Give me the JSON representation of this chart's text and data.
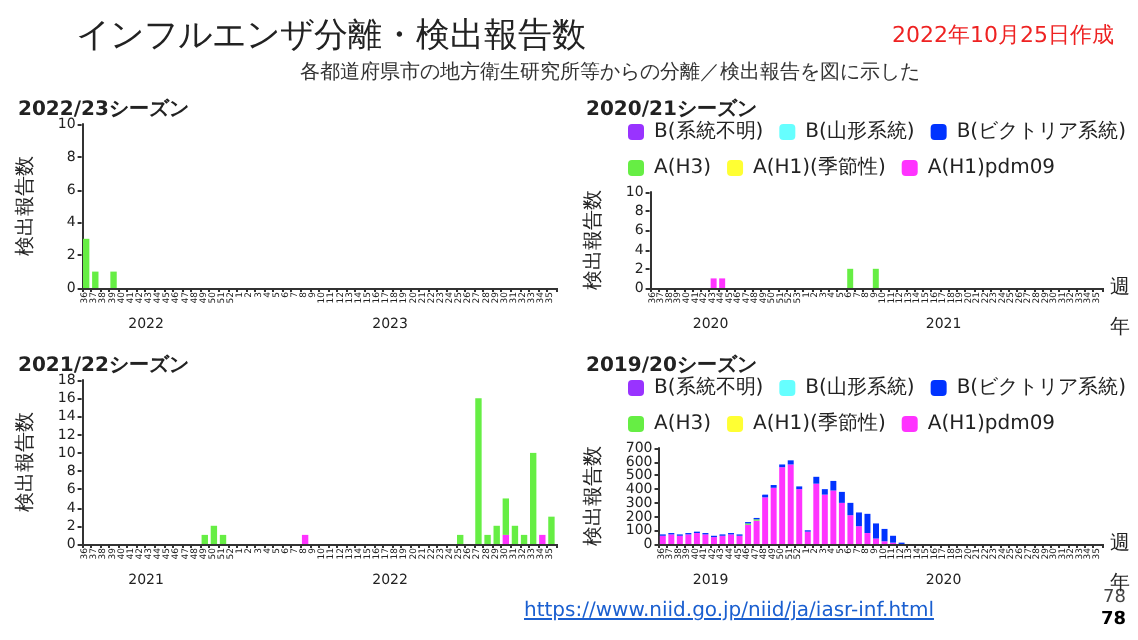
{
  "chart_data": [
    {
      "type": "other",
      "title": "インフルエンザ分離・検出報告数",
      "subtitle": "各都道府県市の地方衛生研究所等からの分離／検出報告を図に示した",
      "annotations": [
        "2022年10月25日作成",
        "https://www.niid.go.jp/niid/ja/iasr-inf.html",
        "78",
        "78"
      ]
    },
    {
      "type": "bar",
      "title": "2022/23シーズン",
      "ylabel": "検出報告数",
      "stacked": true,
      "categories": [
        "36",
        "37",
        "38",
        "39",
        "40",
        "41",
        "42",
        "43",
        "44",
        "45",
        "46",
        "47",
        "48",
        "49",
        "50",
        "51",
        "52",
        "1",
        "2",
        "3",
        "4",
        "5",
        "6",
        "7",
        "8",
        "9",
        "10",
        "11",
        "12",
        "13",
        "14",
        "15",
        "16",
        "17",
        "18",
        "19",
        "20",
        "21",
        "22",
        "23",
        "24",
        "25",
        "26",
        "27",
        "28",
        "29",
        "30",
        "31",
        "32",
        "33",
        "34",
        "35"
      ],
      "ylim": [
        0,
        10
      ],
      "yticks": [
        0,
        2,
        4,
        6,
        8,
        10
      ],
      "annotations": [
        "2022",
        "2023"
      ],
      "series": [
        {
          "color": "#66ee44",
          "values": [
            3,
            1,
            0,
            1,
            0,
            0,
            0,
            0,
            0,
            0,
            0,
            0,
            0,
            0,
            0,
            0,
            0,
            0,
            0,
            0,
            0,
            0,
            0,
            0,
            0,
            0,
            0,
            0,
            0,
            0,
            0,
            0,
            0,
            0,
            0,
            0,
            0,
            0,
            0,
            0,
            0,
            0,
            0,
            0,
            0,
            0,
            0,
            0,
            0,
            0,
            0,
            0
          ]
        }
      ]
    },
    {
      "type": "bar",
      "title": "2020/21シーズン",
      "ylabel": "検出報告数",
      "xlabel": "週",
      "stacked": true,
      "legend": "top",
      "categories": [
        "36",
        "37",
        "38",
        "39",
        "40",
        "41",
        "42",
        "43",
        "44",
        "45",
        "46",
        "47",
        "48",
        "49",
        "50",
        "51",
        "52",
        "53",
        "1",
        "2",
        "3",
        "4",
        "5",
        "6",
        "7",
        "8",
        "9",
        "10",
        "11",
        "12",
        "13",
        "14",
        "15",
        "16",
        "17",
        "18",
        "19",
        "20",
        "21",
        "22",
        "23",
        "24",
        "25",
        "26",
        "27",
        "28",
        "29",
        "30",
        "31",
        "32",
        "33",
        "34",
        "35"
      ],
      "ylim": [
        0,
        10
      ],
      "yticks": [
        0,
        2,
        4,
        6,
        8,
        10
      ],
      "annotations": [
        "2020",
        "2021",
        "年"
      ],
      "series": [
        {
          "name": "A(H1)pdm09",
          "color": "#ff33ff",
          "values": [
            0,
            0,
            0,
            0,
            0,
            0,
            0,
            1,
            1,
            0,
            0,
            0,
            0,
            0,
            0,
            0,
            0,
            0,
            0,
            0,
            0,
            0,
            0,
            0,
            0,
            0,
            0,
            0,
            0,
            0,
            0,
            0,
            0,
            0,
            0,
            0,
            0,
            0,
            0,
            0,
            0,
            0,
            0,
            0,
            0,
            0,
            0,
            0,
            0,
            0,
            0,
            0,
            0
          ]
        },
        {
          "name": "A(H1)(季節性)",
          "color": "#ffff33",
          "values": [
            0,
            0,
            0,
            0,
            0,
            0,
            0,
            0,
            0,
            0,
            0,
            0,
            0,
            0,
            0,
            0,
            0,
            0,
            0,
            0,
            0,
            0,
            0,
            0,
            0,
            0,
            0,
            0,
            0,
            0,
            0,
            0,
            0,
            0,
            0,
            0,
            0,
            0,
            0,
            0,
            0,
            0,
            0,
            0,
            0,
            0,
            0,
            0,
            0,
            0,
            0,
            0,
            0
          ]
        },
        {
          "name": "A(H3)",
          "color": "#66ee44",
          "values": [
            0,
            0,
            0,
            0,
            0,
            0,
            0,
            0,
            0,
            0,
            0,
            0,
            0,
            0,
            0,
            0,
            0,
            0,
            0,
            0,
            0,
            0,
            0,
            2,
            0,
            0,
            2,
            0,
            0,
            0,
            0,
            0,
            0,
            0,
            0,
            0,
            0,
            0,
            0,
            0,
            0,
            0,
            0,
            0,
            0,
            0,
            0,
            0,
            0,
            0,
            0,
            0,
            0
          ]
        },
        {
          "name": "B(ビクトリア系統)",
          "color": "#0033ff",
          "values": [
            0,
            0,
            0,
            0,
            0,
            0,
            0,
            0,
            0,
            0,
            0,
            0,
            0,
            0,
            0,
            0,
            0,
            0,
            0,
            0,
            0,
            0,
            0,
            0,
            0,
            0,
            0,
            0,
            0,
            0,
            0,
            0,
            0,
            0,
            0,
            0,
            0,
            0,
            0,
            0,
            0,
            0,
            0,
            0,
            0,
            0,
            0,
            0,
            0,
            0,
            0,
            0,
            0
          ]
        },
        {
          "name": "B(山形系統)",
          "color": "#66ffff",
          "values": [
            0,
            0,
            0,
            0,
            0,
            0,
            0,
            0,
            0,
            0,
            0,
            0,
            0,
            0,
            0,
            0,
            0,
            0,
            0,
            0,
            0,
            0,
            0,
            0,
            0,
            0,
            0,
            0,
            0,
            0,
            0,
            0,
            0,
            0,
            0,
            0,
            0,
            0,
            0,
            0,
            0,
            0,
            0,
            0,
            0,
            0,
            0,
            0,
            0,
            0,
            0,
            0,
            0
          ]
        },
        {
          "name": "B(系統不明)",
          "color": "#9933ff",
          "values": [
            0,
            0,
            0,
            0,
            0,
            0,
            0,
            0,
            0,
            0,
            0,
            0,
            0,
            0,
            0,
            0,
            0,
            0,
            0,
            0,
            0,
            0,
            0,
            0,
            0,
            0,
            0,
            0,
            0,
            0,
            0,
            0,
            0,
            0,
            0,
            0,
            0,
            0,
            0,
            0,
            0,
            0,
            0,
            0,
            0,
            0,
            0,
            0,
            0,
            0,
            0,
            0,
            0
          ]
        }
      ]
    },
    {
      "type": "bar",
      "title": "2021/22シーズン",
      "ylabel": "検出報告数",
      "stacked": true,
      "categories": [
        "36",
        "37",
        "38",
        "39",
        "40",
        "41",
        "42",
        "43",
        "44",
        "45",
        "46",
        "47",
        "48",
        "49",
        "50",
        "51",
        "52",
        "1",
        "2",
        "3",
        "4",
        "5",
        "6",
        "7",
        "8",
        "9",
        "10",
        "11",
        "12",
        "13",
        "14",
        "15",
        "16",
        "17",
        "18",
        "19",
        "20",
        "21",
        "22",
        "23",
        "24",
        "25",
        "26",
        "27",
        "28",
        "29",
        "30",
        "31",
        "32",
        "33",
        "34",
        "35"
      ],
      "ylim": [
        0,
        18
      ],
      "yticks": [
        0,
        2,
        4,
        6,
        8,
        10,
        12,
        14,
        16,
        18
      ],
      "annotations": [
        "2021",
        "2022"
      ],
      "series": [
        {
          "color": "#ff33ff",
          "values": [
            0,
            0,
            0,
            0,
            0,
            0,
            0,
            0,
            0,
            0,
            0,
            0,
            0,
            0,
            0,
            0,
            0,
            0,
            0,
            0,
            0,
            0,
            0,
            0,
            1,
            0,
            0,
            0,
            0,
            0,
            0,
            0,
            0,
            0,
            0,
            0,
            0,
            0,
            0,
            0,
            0,
            0,
            0,
            0,
            0,
            0,
            1,
            0,
            0,
            0,
            1,
            0
          ]
        },
        {
          "color": "#66ee44",
          "values": [
            0,
            0,
            0,
            0,
            0,
            0,
            0,
            0,
            0,
            0,
            0,
            0,
            0,
            1,
            2,
            1,
            0,
            0,
            0,
            0,
            0,
            0,
            0,
            0,
            0,
            0,
            0,
            0,
            0,
            0,
            0,
            0,
            0,
            0,
            0,
            0,
            0,
            0,
            0,
            0,
            0,
            1,
            0,
            16,
            1,
            2,
            4,
            2,
            1,
            10,
            0,
            3
          ]
        }
      ]
    },
    {
      "type": "bar",
      "title": "2019/20シーズン",
      "ylabel": "検出報告数",
      "xlabel": "週",
      "stacked": true,
      "legend": "top",
      "categories": [
        "36",
        "37",
        "38",
        "39",
        "40",
        "41",
        "42",
        "43",
        "44",
        "45",
        "46",
        "47",
        "48",
        "49",
        "50",
        "51",
        "52",
        "1",
        "2",
        "3",
        "4",
        "5",
        "6",
        "7",
        "8",
        "9",
        "10",
        "11",
        "12",
        "13",
        "14",
        "15",
        "16",
        "17",
        "18",
        "19",
        "20",
        "21",
        "22",
        "23",
        "24",
        "25",
        "26",
        "27",
        "28",
        "29",
        "30",
        "31",
        "32",
        "33",
        "34",
        "35"
      ],
      "ylim": [
        0,
        700
      ],
      "yticks": [
        0,
        100,
        200,
        300,
        400,
        500,
        600,
        700
      ],
      "annotations": [
        "2019",
        "2020",
        "年"
      ],
      "series": [
        {
          "name": "A(H1)pdm09",
          "color": "#ff33ff",
          "values": [
            60,
            70,
            60,
            70,
            80,
            70,
            50,
            60,
            70,
            60,
            140,
            170,
            340,
            410,
            560,
            580,
            400,
            90,
            440,
            360,
            390,
            300,
            210,
            130,
            80,
            40,
            20,
            10,
            0,
            0,
            0,
            0,
            0,
            0,
            0,
            0,
            0,
            0,
            0,
            0,
            0,
            0,
            0,
            0,
            0,
            0,
            0,
            0,
            0,
            0,
            0,
            0
          ]
        },
        {
          "name": "A(H1)(季節性)",
          "color": "#ffff33",
          "values": [
            0,
            0,
            0,
            0,
            0,
            0,
            0,
            0,
            0,
            0,
            0,
            0,
            0,
            0,
            0,
            0,
            0,
            0,
            0,
            0,
            0,
            0,
            0,
            0,
            0,
            0,
            0,
            0,
            0,
            0,
            0,
            0,
            0,
            0,
            0,
            0,
            0,
            0,
            0,
            0,
            0,
            0,
            0,
            0,
            0,
            0,
            0,
            0,
            0,
            0,
            0,
            0
          ]
        },
        {
          "name": "A(H3)",
          "color": "#66ee44",
          "values": [
            0,
            0,
            0,
            0,
            0,
            0,
            0,
            0,
            0,
            0,
            10,
            10,
            0,
            0,
            0,
            0,
            0,
            0,
            0,
            0,
            0,
            0,
            0,
            0,
            0,
            0,
            0,
            0,
            0,
            0,
            0,
            0,
            0,
            0,
            0,
            0,
            0,
            0,
            0,
            0,
            0,
            0,
            0,
            0,
            0,
            0,
            0,
            0,
            0,
            0,
            0,
            0
          ]
        },
        {
          "name": "B(ビクトリア系統)",
          "color": "#0033ff",
          "values": [
            10,
            10,
            10,
            10,
            10,
            10,
            10,
            10,
            10,
            10,
            10,
            10,
            20,
            20,
            20,
            30,
            20,
            10,
            50,
            40,
            70,
            80,
            90,
            100,
            140,
            110,
            90,
            50,
            10,
            0,
            0,
            0,
            0,
            0,
            0,
            0,
            0,
            0,
            0,
            0,
            0,
            0,
            0,
            0,
            0,
            0,
            0,
            0,
            0,
            0,
            0,
            0
          ]
        },
        {
          "name": "B(山形系統)",
          "color": "#66ffff",
          "values": [
            0,
            0,
            0,
            0,
            0,
            0,
            0,
            0,
            0,
            0,
            0,
            0,
            0,
            0,
            0,
            0,
            0,
            0,
            0,
            0,
            0,
            0,
            0,
            0,
            0,
            0,
            0,
            0,
            0,
            0,
            0,
            0,
            0,
            0,
            0,
            0,
            0,
            0,
            0,
            0,
            0,
            0,
            0,
            0,
            0,
            0,
            0,
            0,
            0,
            0,
            0,
            0
          ]
        },
        {
          "name": "B(系統不明)",
          "color": "#9933ff",
          "values": [
            0,
            0,
            0,
            0,
            0,
            0,
            0,
            0,
            0,
            0,
            0,
            0,
            0,
            0,
            0,
            0,
            0,
            0,
            0,
            0,
            0,
            0,
            0,
            0,
            0,
            0,
            0,
            0,
            0,
            0,
            0,
            0,
            0,
            0,
            0,
            0,
            0,
            0,
            0,
            0,
            0,
            0,
            0,
            0,
            0,
            0,
            0,
            0,
            0,
            0,
            0,
            0
          ]
        }
      ]
    }
  ]
}
